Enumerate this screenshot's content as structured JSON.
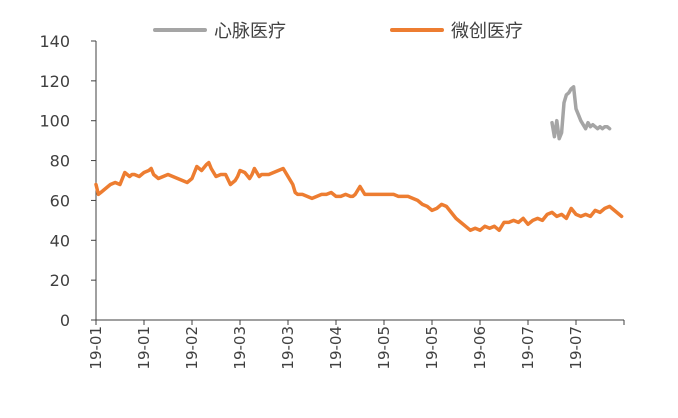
{
  "chart_data": {
    "type": "line",
    "ylim": [
      0,
      140
    ],
    "yticks": [
      0,
      20,
      40,
      60,
      80,
      100,
      120,
      140
    ],
    "x_tick_labels": [
      "19-01",
      "19-01",
      "19-02",
      "19-03",
      "19-03",
      "19-04",
      "19-05",
      "19-05",
      "19-06",
      "19-07",
      "19-07"
    ],
    "xlim": [
      0,
      220
    ],
    "legend_position": "top",
    "grid": false,
    "series": [
      {
        "name": "心脉医疗",
        "color": "#A5A5A5",
        "x": [
          190,
          191,
          192,
          193,
          194,
          195,
          196,
          197,
          198,
          199,
          200,
          201,
          202,
          203,
          204,
          205,
          206,
          207,
          208,
          209,
          210,
          211,
          212,
          213,
          214
        ],
        "values": [
          99,
          92,
          100,
          91,
          94,
          109,
          113,
          114,
          116,
          117,
          106,
          103,
          100,
          98,
          96,
          99,
          97,
          98,
          97,
          96,
          97,
          96,
          97,
          97,
          96
        ]
      },
      {
        "name": "微创医疗",
        "color": "#ED7D31",
        "x": [
          0,
          1,
          2,
          4,
          6,
          8,
          10,
          12,
          14,
          15,
          16,
          18,
          20,
          22,
          23,
          24,
          26,
          28,
          30,
          32,
          34,
          36,
          38,
          40,
          42,
          44,
          46,
          47,
          48,
          50,
          52,
          54,
          56,
          58,
          59,
          60,
          62,
          64,
          65,
          66,
          68,
          69,
          70,
          72,
          74,
          76,
          78,
          79,
          80,
          82,
          83,
          84,
          86,
          88,
          90,
          92,
          94,
          96,
          98,
          100,
          102,
          104,
          106,
          107,
          108,
          110,
          112,
          114,
          116,
          118,
          120,
          122,
          124,
          126,
          128,
          130,
          132,
          134,
          136,
          138,
          140,
          142,
          144,
          146,
          148,
          150,
          152,
          154,
          155,
          156,
          158,
          160,
          162,
          164,
          166,
          168,
          170,
          172,
          174,
          176,
          178,
          180,
          182,
          184,
          186,
          188,
          190,
          192,
          194,
          196,
          198,
          200,
          202,
          204,
          206,
          208,
          210,
          212,
          214,
          216,
          218,
          219
        ],
        "values": [
          68,
          63,
          64,
          66,
          68,
          69,
          68,
          74,
          72,
          73,
          73,
          72,
          74,
          75,
          76,
          73,
          71,
          72,
          73,
          72,
          71,
          70,
          69,
          71,
          77,
          75,
          78,
          79,
          76,
          72,
          73,
          73,
          68,
          70,
          72,
          75,
          74,
          71,
          73,
          76,
          72,
          73,
          73,
          73,
          74,
          75,
          76,
          74,
          72,
          68,
          64,
          63,
          63,
          62,
          61,
          62,
          63,
          63,
          64,
          62,
          62,
          63,
          62,
          62,
          63,
          67,
          63,
          63,
          63,
          63,
          63,
          63,
          63,
          62,
          62,
          62,
          61,
          60,
          58,
          57,
          55,
          56,
          58,
          57,
          54,
          51,
          49,
          47,
          46,
          45,
          46,
          45,
          47,
          46,
          47,
          45,
          49,
          49,
          50,
          49,
          51,
          48,
          50,
          51,
          50,
          53,
          54,
          52,
          53,
          51,
          56,
          53,
          52,
          53,
          52,
          55,
          54,
          56,
          57,
          55,
          53,
          52
        ]
      }
    ]
  }
}
